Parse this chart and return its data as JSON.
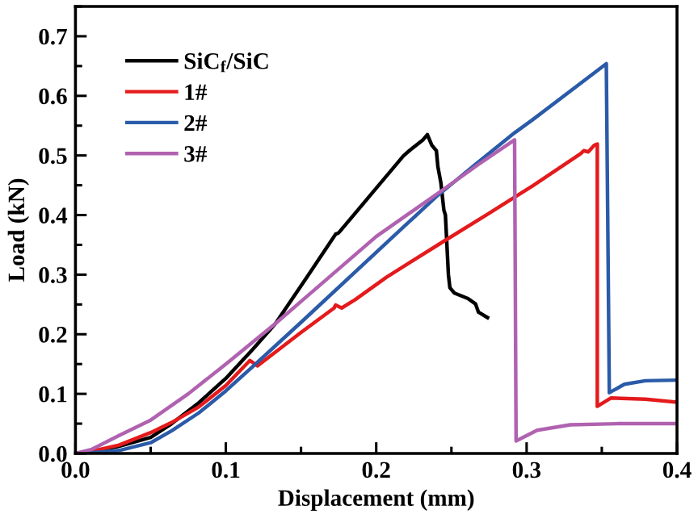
{
  "chart_data": {
    "type": "line",
    "xlabel": "Displacement (mm)",
    "ylabel": "Load (kN)",
    "xlim": [
      0,
      0.4
    ],
    "ylim": [
      0,
      0.75
    ],
    "xticks": [
      {
        "value": 0,
        "label": "0.0"
      },
      0.1,
      0.2,
      0.3,
      0.4
    ],
    "yticks": [
      {
        "value": 0,
        "label": "0.0"
      },
      0.1,
      0.2,
      0.3,
      0.4,
      0.5,
      0.6,
      0.7
    ],
    "grid": false,
    "legend": "top left",
    "line_style": "solid",
    "series": [
      {
        "name": "SiC$_{f}$/SiC",
        "color": "#000000",
        "x": [
          0,
          0.011,
          0.029,
          0.05,
          0.064,
          0.082,
          0.1,
          0.118,
          0.133,
          0.154,
          0.173,
          0.175,
          0.197,
          0.218,
          0.222,
          0.231,
          0.234,
          0.237,
          0.24,
          0.241,
          0.243,
          0.245,
          0.246,
          0.247,
          0.248,
          0.249,
          0.252,
          0.261,
          0.266,
          0.268,
          0.274
        ],
        "values": [
          0,
          0.003,
          0.012,
          0.027,
          0.05,
          0.085,
          0.126,
          0.175,
          0.218,
          0.296,
          0.368,
          0.37,
          0.436,
          0.499,
          0.508,
          0.526,
          0.535,
          0.517,
          0.508,
          0.481,
          0.454,
          0.408,
          0.4,
          0.35,
          0.3,
          0.278,
          0.269,
          0.26,
          0.251,
          0.237,
          0.228
        ]
      },
      {
        "name": "1#",
        "color": "#e41a1c",
        "x": [
          0,
          0.011,
          0.029,
          0.05,
          0.064,
          0.082,
          0.1,
          0.116,
          0.121,
          0.15,
          0.172,
          0.173,
          0.177,
          0.186,
          0.207,
          0.243,
          0.275,
          0.304,
          0.336,
          0.338,
          0.341,
          0.345,
          0.347,
          0.347,
          0.356,
          0.379,
          0.4
        ],
        "values": [
          0,
          0.004,
          0.014,
          0.035,
          0.052,
          0.078,
          0.114,
          0.156,
          0.147,
          0.203,
          0.244,
          0.249,
          0.244,
          0.258,
          0.296,
          0.353,
          0.403,
          0.449,
          0.503,
          0.508,
          0.506,
          0.517,
          0.519,
          0.079,
          0.093,
          0.091,
          0.086
        ]
      },
      {
        "name": "2#",
        "color": "#2b5ba8",
        "x": [
          0,
          0.011,
          0.029,
          0.05,
          0.064,
          0.082,
          0.1,
          0.118,
          0.15,
          0.207,
          0.24,
          0.265,
          0.292,
          0.304,
          0.353,
          0.355,
          0.365,
          0.379,
          0.4
        ],
        "values": [
          0,
          0.001,
          0.005,
          0.018,
          0.038,
          0.068,
          0.105,
          0.146,
          0.22,
          0.354,
          0.431,
          0.483,
          0.538,
          0.56,
          0.654,
          0.102,
          0.116,
          0.122,
          0.123
        ]
      },
      {
        "name": "3#",
        "color": "#b062b0",
        "x": [
          0,
          0.011,
          0.029,
          0.05,
          0.075,
          0.1,
          0.133,
          0.15,
          0.2,
          0.243,
          0.268,
          0.292,
          0.293,
          0.307,
          0.329,
          0.361,
          0.4
        ],
        "values": [
          0,
          0.007,
          0.03,
          0.056,
          0.1,
          0.15,
          0.218,
          0.255,
          0.364,
          0.44,
          0.485,
          0.526,
          0.021,
          0.039,
          0.048,
          0.05,
          0.05
        ]
      }
    ]
  }
}
